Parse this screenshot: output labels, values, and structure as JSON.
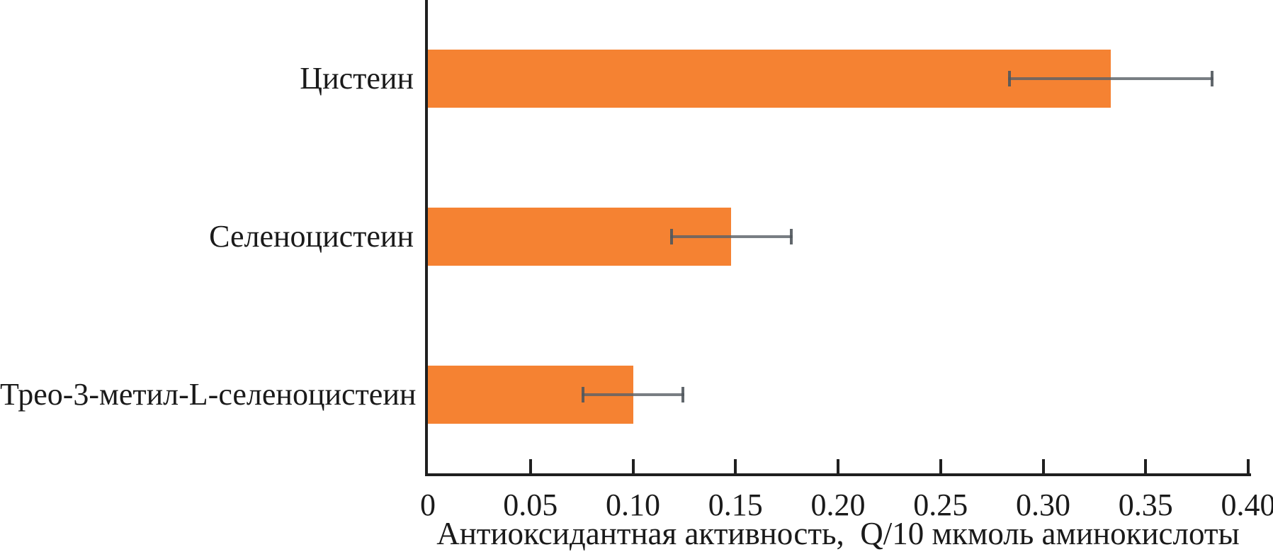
{
  "chart_data": {
    "type": "bar",
    "orientation": "horizontal",
    "title": "",
    "categories": [
      "Цистеин",
      "Селеноцистеин",
      "Трео-3-метил-L-селеноцистеин"
    ],
    "values": [
      0.333,
      0.148,
      0.1
    ],
    "errors": [
      0.05,
      0.03,
      0.025
    ],
    "xlabel": "Антиоксидантная активность,  Q/10 мкмоль аминокислоты",
    "ylabel": "",
    "xlim": [
      0,
      0.4
    ],
    "xticks": [
      0,
      0.05,
      0.1,
      0.15,
      0.2,
      0.25,
      0.3,
      0.35,
      0.4
    ],
    "xtick_labels": [
      "0",
      "0.05",
      "0.10",
      "0.15",
      "0.20",
      "0.25",
      "0.30",
      "0.35",
      "0.40"
    ],
    "grid": false,
    "legend": false,
    "bar_color": "#f58232",
    "error_color": "#5c6268",
    "axis_color": "#1f1f1f",
    "text_color": "#1a1a1a",
    "background_color": "#ffffff"
  }
}
